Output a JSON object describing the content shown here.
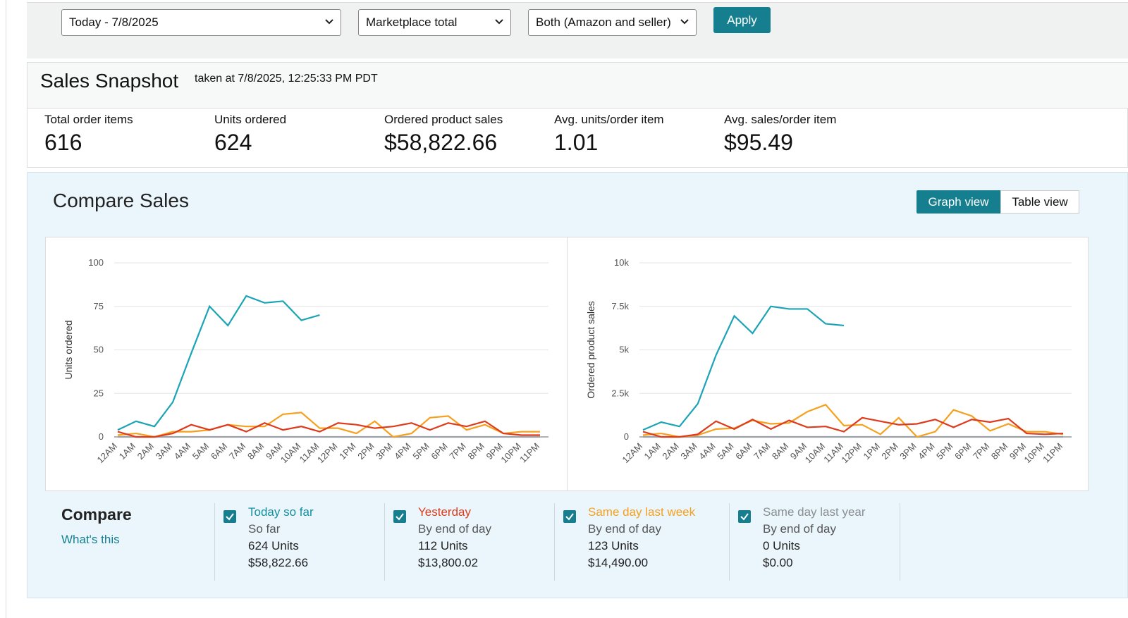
{
  "filters": {
    "date": "Today - 7/8/2025",
    "marketplace": "Marketplace total",
    "fulfillment": "Both (Amazon and seller)",
    "apply": "Apply"
  },
  "snapshot": {
    "title": "Sales Snapshot",
    "taken": "taken at 7/8/2025, 12:25:33 PM PDT",
    "metrics": [
      {
        "label": "Total order items",
        "value": "616"
      },
      {
        "label": "Units ordered",
        "value": "624"
      },
      {
        "label": "Ordered product sales",
        "value": "$58,822.66"
      },
      {
        "label": "Avg. units/order item",
        "value": "1.01"
      },
      {
        "label": "Avg. sales/order item",
        "value": "$95.49"
      }
    ]
  },
  "compare_sales": {
    "title": "Compare Sales",
    "graph_view": "Graph view",
    "table_view": "Table view"
  },
  "compare": {
    "title": "Compare",
    "link": "What's this",
    "items": [
      {
        "period": "So far",
        "units": "624 Units",
        "sales": "$58,822.66"
      },
      {
        "period": "By end of day",
        "units": "112 Units",
        "sales": "$13,800.02"
      },
      {
        "period": "By end of day",
        "units": "123 Units",
        "sales": "$14,490.00"
      },
      {
        "period": "By end of day",
        "units": "0 Units",
        "sales": "$0.00"
      }
    ]
  },
  "chart_data": [
    {
      "type": "line",
      "y_label": "Units ordered",
      "categories": [
        "12AM",
        "1AM",
        "2AM",
        "3AM",
        "4AM",
        "5AM",
        "6AM",
        "7AM",
        "8AM",
        "9AM",
        "10AM",
        "11AM",
        "12PM",
        "1PM",
        "2PM",
        "3PM",
        "4PM",
        "5PM",
        "6PM",
        "7PM",
        "8PM",
        "9PM",
        "10PM",
        "11PM"
      ],
      "ylim": [
        0,
        100
      ],
      "yticks": [
        0,
        25,
        50,
        75,
        100
      ],
      "grid": true,
      "series": [
        {
          "name": "Today so far",
          "color": "#1ba3b6",
          "values": [
            4,
            9,
            6,
            20,
            48,
            75,
            64,
            81,
            77,
            78,
            67,
            70,
            null,
            null,
            null,
            null,
            null,
            null,
            null,
            null,
            null,
            null,
            null,
            null
          ]
        },
        {
          "name": "Yesterday",
          "color": "#dd3b1c",
          "values": [
            3,
            0,
            0,
            2,
            7,
            4,
            7,
            3,
            8,
            4,
            6,
            3,
            8,
            7,
            5,
            6,
            8,
            4,
            8,
            6,
            9,
            2,
            1,
            1
          ]
        },
        {
          "name": "Same day last week",
          "color": "#f5a01f",
          "values": [
            1,
            2,
            0,
            3,
            3,
            4,
            7,
            6,
            6,
            13,
            14,
            5,
            5,
            2,
            9,
            0,
            2,
            11,
            12,
            4,
            7,
            2,
            3,
            3
          ]
        },
        {
          "name": "Same day last year",
          "color": "#9aa0a6",
          "values": [
            0,
            0,
            0,
            0,
            0,
            0,
            0,
            0,
            0,
            0,
            0,
            0,
            0,
            0,
            0,
            0,
            0,
            0,
            0,
            0,
            0,
            0,
            0,
            0
          ]
        }
      ]
    },
    {
      "type": "line",
      "y_label": "Ordered product sales",
      "categories": [
        "12AM",
        "1AM",
        "2AM",
        "3AM",
        "4AM",
        "5AM",
        "6AM",
        "7AM",
        "8AM",
        "9AM",
        "10AM",
        "11AM",
        "12PM",
        "1PM",
        "2PM",
        "3PM",
        "4PM",
        "5PM",
        "6PM",
        "7PM",
        "8PM",
        "9PM",
        "10PM",
        "11PM"
      ],
      "ylim": [
        0,
        10000
      ],
      "yticks": [
        0,
        {
          "value": 2500,
          "label": "2.5k"
        },
        {
          "value": 5000,
          "label": "5k"
        },
        {
          "value": 7500,
          "label": "7.5k"
        },
        {
          "value": 10000,
          "label": "10k"
        }
      ],
      "grid": true,
      "series": [
        {
          "name": "Today so far",
          "color": "#1ba3b6",
          "values": [
            400,
            850,
            600,
            1900,
            4700,
            6950,
            5950,
            7500,
            7350,
            7350,
            6500,
            6400,
            null,
            null,
            null,
            null,
            null,
            null,
            null,
            null,
            null,
            null,
            null,
            null
          ]
        },
        {
          "name": "Yesterday",
          "color": "#dd3b1c",
          "values": [
            300,
            0,
            0,
            150,
            900,
            450,
            1000,
            450,
            950,
            550,
            600,
            300,
            1100,
            900,
            700,
            750,
            1000,
            550,
            1000,
            850,
            1050,
            200,
            150,
            200
          ]
        },
        {
          "name": "Same day last week",
          "color": "#f5a01f",
          "values": [
            100,
            200,
            0,
            100,
            450,
            500,
            950,
            750,
            800,
            1450,
            1850,
            650,
            700,
            150,
            1100,
            0,
            300,
            1550,
            1200,
            350,
            750,
            300,
            300,
            150
          ]
        },
        {
          "name": "Same day last year",
          "color": "#9aa0a6",
          "values": [
            0,
            0,
            0,
            0,
            0,
            0,
            0,
            0,
            0,
            0,
            0,
            0,
            0,
            0,
            0,
            0,
            0,
            0,
            0,
            0,
            0,
            0,
            0,
            0
          ]
        }
      ]
    }
  ]
}
